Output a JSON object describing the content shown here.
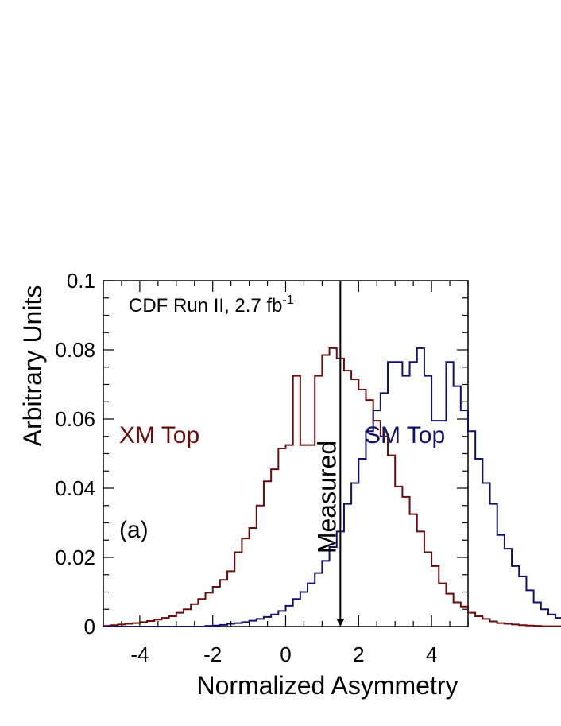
{
  "chart_data": {
    "type": "histogram",
    "title": "",
    "annotation": "CDF Run II, 2.7 fb",
    "annotation_superscript": "-1",
    "panel_label": "(a)",
    "xlabel": "Normalized Asymmetry",
    "ylabel": "Arbitrary Units",
    "xlim": [
      -5,
      5
    ],
    "ylim": [
      0,
      0.1
    ],
    "xticks": [
      -4,
      -2,
      0,
      2,
      4
    ],
    "xtick_labels": [
      "-4",
      "-2",
      "0",
      "2",
      "4"
    ],
    "yticks": [
      0,
      0.02,
      0.04,
      0.06,
      0.08,
      0.1
    ],
    "ytick_labels": [
      "0",
      "0.02",
      "0.04",
      "0.06",
      "0.08",
      "0.1"
    ],
    "bin_edges_start": -5,
    "bin_width": 0.2,
    "measured": {
      "label": "Measured",
      "x": 1.5
    },
    "series": [
      {
        "name": "XM Top",
        "color": "#6b0c0c",
        "values": [
          0.0002,
          0.0004,
          0.0006,
          0.0008,
          0.001,
          0.0013,
          0.0016,
          0.002,
          0.0025,
          0.003,
          0.004,
          0.005,
          0.0065,
          0.008,
          0.0098,
          0.0115,
          0.0135,
          0.016,
          0.0215,
          0.0255,
          0.0285,
          0.035,
          0.042,
          0.0455,
          0.0515,
          0.0525,
          0.0725,
          0.0525,
          0.0525,
          0.0725,
          0.0785,
          0.0805,
          0.0775,
          0.074,
          0.0715,
          0.0685,
          0.0655,
          0.0595,
          0.055,
          0.0495,
          0.0405,
          0.0375,
          0.0325,
          0.0275,
          0.0215,
          0.0175,
          0.0125,
          0.0095,
          0.007,
          0.0058,
          0.004,
          0.003,
          0.0022,
          0.0015,
          0.001,
          0.0008,
          0.0006,
          0.0004,
          0.0003,
          0.0002,
          0.0001,
          0.0001,
          0.0001,
          0.0001,
          0.0001,
          0.0,
          0.0,
          0.0,
          0.0,
          0.0
        ]
      },
      {
        "name": "SM Top",
        "color": "#11116b",
        "values": [
          0.0,
          0.0,
          0.0,
          0.0,
          0.0,
          0.0,
          0.0,
          0.0,
          0.0,
          0.0,
          0.0,
          0.0,
          0.0,
          0.0,
          0.0002,
          0.0003,
          0.0005,
          0.0008,
          0.001,
          0.0013,
          0.0017,
          0.0022,
          0.0028,
          0.0035,
          0.0045,
          0.006,
          0.008,
          0.01,
          0.0125,
          0.0155,
          0.019,
          0.023,
          0.0275,
          0.0355,
          0.0415,
          0.0485,
          0.0565,
          0.0625,
          0.0675,
          0.0765,
          0.0765,
          0.0725,
          0.0765,
          0.0805,
          0.0725,
          0.0595,
          0.0595,
          0.0765,
          0.0695,
          0.0625,
          0.0565,
          0.0485,
          0.0415,
          0.0355,
          0.0265,
          0.0225,
          0.0175,
          0.0145,
          0.0105,
          0.007,
          0.005,
          0.0035,
          0.0025,
          0.0018,
          0.0012,
          0.0008,
          0.0005,
          0.0003,
          0.0002,
          0.0001
        ]
      }
    ]
  }
}
